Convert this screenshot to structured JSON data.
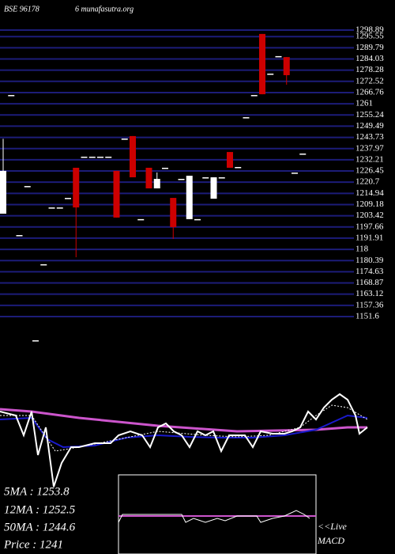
{
  "header": {
    "symbol": "BSE 96178",
    "site": "6 munafasutra.org"
  },
  "chart_data": [
    {
      "type": "candlestick",
      "open": [
        1204.5,
        1265.5,
        1193.5,
        1218.7,
        1139.4,
        1178.5,
        1207.7,
        1207.7,
        1212.6,
        1228.1,
        1233.8,
        1233.8,
        1233.8,
        1233.8,
        1226.5,
        1243.1,
        1244.4,
        1201.7,
        1228.1,
        1217.5,
        1228.1,
        1212.6,
        1222.4,
        1201.7,
        1201.7,
        1223.2,
        1212.2,
        1223.2,
        1236.2,
        1228.5,
        1254.1,
        1265.5,
        1296.9,
        1276.5,
        1285.5,
        1285.0,
        1225.6,
        1235.4
      ],
      "high": [
        1243.0,
        1265.5,
        1193.5,
        1218.7,
        1139.4,
        1178.5,
        1207.7,
        1207.7,
        1212.6,
        1228.1,
        1233.8,
        1233.8,
        1233.8,
        1233.8,
        1226.5,
        1243.1,
        1244.4,
        1201.7,
        1228.1,
        1225.7,
        1228.1,
        1212.6,
        1222.4,
        1224.0,
        1201.7,
        1223.2,
        1223.2,
        1223.2,
        1236.2,
        1228.5,
        1254.1,
        1265.5,
        1296.9,
        1276.5,
        1285.5,
        1285.0,
        1225.6,
        1235.4
      ],
      "low": [
        1204.5,
        1265.5,
        1193.5,
        1218.7,
        1139.4,
        1178.5,
        1207.7,
        1207.7,
        1212.6,
        1182.1,
        1233.8,
        1233.8,
        1233.8,
        1233.8,
        1202.5,
        1243.1,
        1223.2,
        1201.7,
        1217.5,
        1217.5,
        1228.1,
        1191.5,
        1222.4,
        1201.7,
        1201.7,
        1223.2,
        1212.2,
        1223.2,
        1228.1,
        1228.5,
        1254.1,
        1265.5,
        1265.9,
        1276.5,
        1285.5,
        1270.8,
        1225.6,
        1235.4
      ],
      "close": [
        1226.5,
        1265.5,
        1193.5,
        1218.7,
        1139.4,
        1178.5,
        1207.7,
        1207.7,
        1212.6,
        1207.7,
        1233.8,
        1233.8,
        1233.8,
        1233.8,
        1202.5,
        1243.1,
        1223.2,
        1201.7,
        1217.5,
        1222.4,
        1228.1,
        1197.6,
        1222.4,
        1224.0,
        1201.7,
        1223.2,
        1223.2,
        1223.2,
        1228.1,
        1228.5,
        1254.1,
        1265.5,
        1265.9,
        1276.5,
        1285.5,
        1275.7,
        1225.6,
        1235.4
      ],
      "up_color": "#ffffff",
      "down_color": "#cc0000",
      "grid_color": "#1c1c78",
      "ylim": [
        1151.6,
        1298.89
      ],
      "yticks": [
        1298.89,
        1295.55,
        1289.79,
        1284.03,
        1278.28,
        1272.52,
        1266.76,
        1261,
        1255.24,
        1249.49,
        1243.73,
        1237.97,
        1232.21,
        1226.45,
        1220.7,
        1214.94,
        1209.18,
        1203.42,
        1197.66,
        1191.91,
        {
          "value": 1186.15,
          "label": "118"
        },
        1180.39,
        1174.63,
        1168.87,
        1163.12,
        1157.36,
        1151.6
      ]
    },
    {
      "type": "line",
      "xlim": [
        0,
        470
      ],
      "ylim": [
        0,
        130
      ],
      "series": [
        {
          "color": "#cc55cc",
          "width": 3,
          "x": [
            0,
            40,
            100,
            200,
            300,
            400,
            440,
            465
          ],
          "values": [
            103,
            100,
            92,
            82,
            75,
            77,
            80,
            80
          ]
        },
        {
          "color": "#1a1acc",
          "width": 2,
          "x": [
            0,
            40,
            60,
            80,
            120,
            160,
            200,
            240,
            280,
            320,
            360,
            400,
            440,
            465
          ],
          "values": [
            90,
            92,
            65,
            55,
            57,
            67,
            70,
            68,
            67,
            67,
            70,
            77,
            95,
            92
          ]
        },
        {
          "color": "#ffffff",
          "width": 1,
          "dash": true,
          "x": [
            0,
            40,
            70,
            100,
            150,
            200,
            260,
            300,
            340,
            380,
            400,
            420,
            440,
            465
          ],
          "values": [
            95,
            95,
            50,
            55,
            65,
            75,
            70,
            68,
            70,
            80,
            95,
            108,
            105,
            90
          ]
        },
        {
          "color": "#ffffff",
          "width": 2,
          "x": [
            0,
            20,
            30,
            40,
            48,
            58,
            68,
            78,
            90,
            100,
            120,
            140,
            150,
            165,
            180,
            190,
            200,
            210,
            220,
            230,
            240,
            250,
            260,
            270,
            280,
            290,
            300,
            310,
            320,
            330,
            345,
            360,
            370,
            380,
            390,
            400,
            410,
            420,
            430,
            440,
            450,
            455,
            465
          ],
          "values": [
            100,
            95,
            70,
            100,
            45,
            80,
            5,
            35,
            55,
            55,
            60,
            60,
            70,
            75,
            70,
            55,
            80,
            85,
            75,
            70,
            55,
            75,
            70,
            75,
            50,
            70,
            70,
            70,
            55,
            75,
            72,
            72,
            75,
            80,
            100,
            90,
            105,
            115,
            122,
            115,
            95,
            72,
            80
          ]
        }
      ]
    },
    {
      "type": "line",
      "xlim": [
        150,
        400
      ],
      "ylim": [
        0,
        100
      ],
      "series": [
        {
          "color": "#cc55cc",
          "width": 2,
          "x": [
            150,
            400
          ],
          "values": [
            48,
            48
          ]
        },
        {
          "color": "#ffffff",
          "width": 1,
          "x": [
            150,
            155,
            170,
            230,
            235,
            245,
            260,
            275,
            285,
            300,
            325,
            330,
            345,
            360,
            375,
            385,
            392
          ],
          "values": [
            40,
            50,
            50,
            50,
            40,
            45,
            40,
            45,
            42,
            48,
            48,
            40,
            45,
            48,
            55,
            50,
            45
          ]
        }
      ]
    }
  ],
  "stats": {
    "ma5": "5MA : 1253.8",
    "ma12": "12MA : 1252.5",
    "ma50": "50MA : 1244.6",
    "price": "Price  : 1241",
    "live": "<<Live",
    "macd": "MACD"
  }
}
